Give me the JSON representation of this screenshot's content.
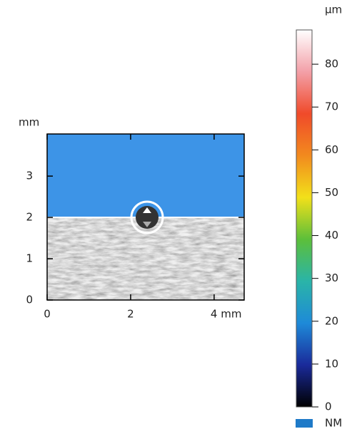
{
  "chart_data": {
    "type": "heatmap",
    "y_unit": "mm",
    "xlim": [
      0,
      4.72
    ],
    "xticks": [
      0,
      2,
      {
        "value": 4,
        "label": "4 mm"
      }
    ],
    "ylim": [
      0,
      4.02
    ],
    "yticks": [
      0,
      1,
      2,
      3
    ],
    "colorbar": {
      "unit": "µm",
      "zlim": [
        0,
        88
      ],
      "ticks": [
        0,
        10,
        20,
        30,
        40,
        50,
        60,
        70,
        80
      ],
      "colors": [
        "#000000",
        "#1a2a9a",
        "#1e8ad8",
        "#2ab4a8",
        "#5cbf3a",
        "#f2e01a",
        "#f28a1e",
        "#f04a2a",
        "#f3a0a8",
        "#ffffff"
      ]
    },
    "legend": [
      {
        "name": "NM",
        "color": "#1e7ac8"
      }
    ]
  }
}
